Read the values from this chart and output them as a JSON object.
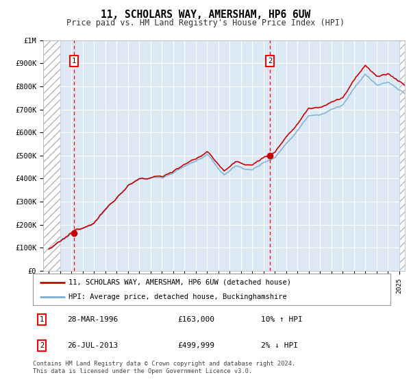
{
  "title": "11, SCHOLARS WAY, AMERSHAM, HP6 6UW",
  "subtitle": "Price paid vs. HM Land Registry's House Price Index (HPI)",
  "ylabel_ticks": [
    "£0",
    "£100K",
    "£200K",
    "£300K",
    "£400K",
    "£500K",
    "£600K",
    "£700K",
    "£800K",
    "£900K",
    "£1M"
  ],
  "ytick_values": [
    0,
    100000,
    200000,
    300000,
    400000,
    500000,
    600000,
    700000,
    800000,
    900000,
    1000000
  ],
  "xlim": [
    1993.5,
    2025.5
  ],
  "ylim": [
    0,
    1000000
  ],
  "plot_bg_color": "#dce9f5",
  "fig_bg_color": "#ffffff",
  "grid_color": "#ffffff",
  "hatch_color": "#b0b8c0",
  "sale1_year": 1996.24,
  "sale1_price": 163000,
  "sale2_year": 2013.56,
  "sale2_price": 499999,
  "legend_label1": "11, SCHOLARS WAY, AMERSHAM, HP6 6UW (detached house)",
  "legend_label2": "HPI: Average price, detached house, Buckinghamshire",
  "legend_color1": "#cc0000",
  "legend_color2": "#7bafd4",
  "footer_text": "Contains HM Land Registry data © Crown copyright and database right 2024.\nThis data is licensed under the Open Government Licence v3.0.",
  "table_rows": [
    {
      "num": "1",
      "date": "28-MAR-1996",
      "price": "£163,000",
      "hpi": "10% ↑ HPI"
    },
    {
      "num": "2",
      "date": "26-JUL-2013",
      "price": "£499,999",
      "hpi": "2% ↓ HPI"
    }
  ]
}
